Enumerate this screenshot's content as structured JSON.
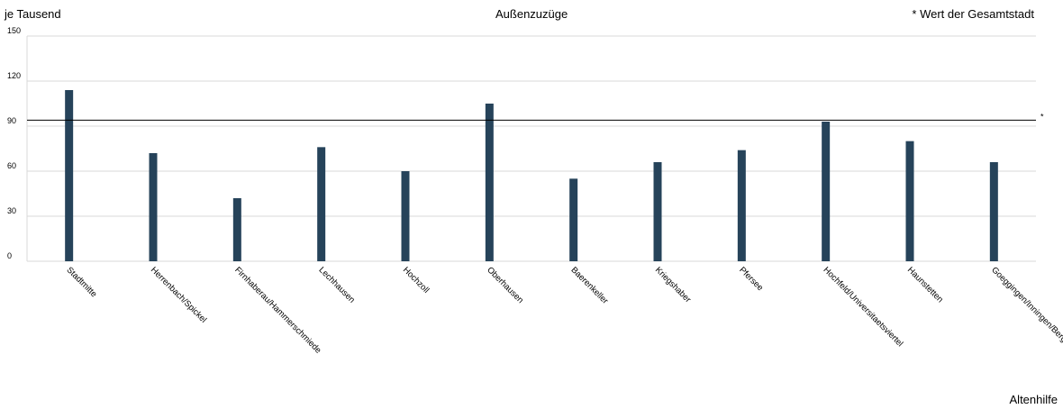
{
  "header": {
    "ylabel": "je Tausend",
    "title": "Außenzuzüge",
    "note": "* Wert der Gesamtstadt",
    "footer": "Altenhilfe"
  },
  "colors": {
    "bar": "#26435a",
    "grid": "#d9d9d9",
    "reference_line": "#000000"
  },
  "chart_data": {
    "type": "bar",
    "title": "Außenzuzüge",
    "ylabel": "je Tausend",
    "ylim": [
      0,
      150
    ],
    "yticks": [
      0,
      30,
      60,
      90,
      120,
      150
    ],
    "grid": true,
    "categories": [
      "Stadtmitte",
      "Herrenbach/Spickel",
      "Firnhaberau/Hammerschmiede",
      "Lechhausen",
      "Hochzoll",
      "Oberhausen",
      "Baerenkeller",
      "Kriegshaber",
      "Pfersee",
      "Hochfeld/Universitaetsviertel",
      "Haunstetten",
      "Goeggingen/Inningen/Bergheim"
    ],
    "values": [
      114,
      72,
      42,
      76,
      60,
      105,
      55,
      66,
      74,
      93,
      80,
      66
    ],
    "reference": {
      "label": "*",
      "value": 94
    }
  }
}
